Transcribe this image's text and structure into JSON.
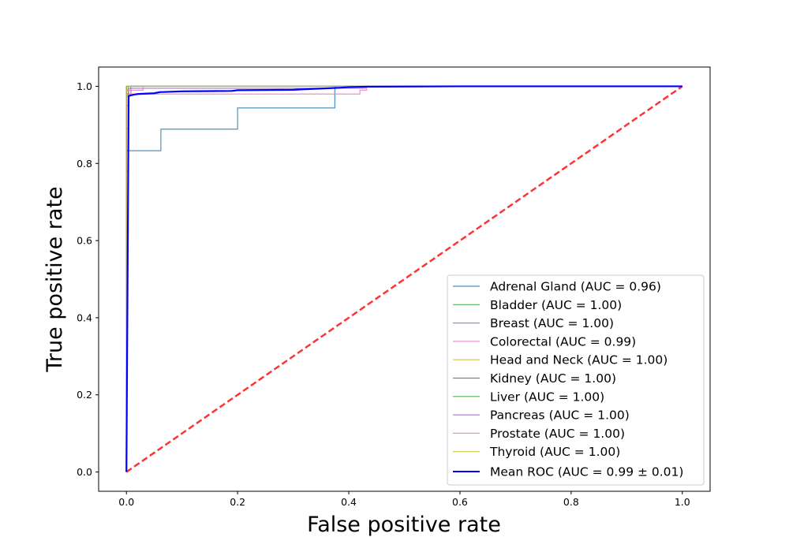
{
  "chart_data": {
    "type": "line",
    "title": "",
    "xlabel": "False positive rate",
    "ylabel": "True positive rate",
    "xlim": [
      -0.05,
      1.05
    ],
    "ylim": [
      -0.05,
      1.05
    ],
    "xticks": [
      {
        "value": 0.0,
        "label": "0.0"
      },
      {
        "value": 0.2,
        "label": "0.2"
      },
      {
        "value": 0.4,
        "label": "0.4"
      },
      {
        "value": 0.6,
        "label": "0.6"
      },
      {
        "value": 0.8,
        "label": "0.8"
      },
      {
        "value": 1.0,
        "label": "1.0"
      }
    ],
    "yticks": [
      {
        "value": 0.0,
        "label": "0.0"
      },
      {
        "value": 0.2,
        "label": "0.2"
      },
      {
        "value": 0.4,
        "label": "0.4"
      },
      {
        "value": 0.6,
        "label": "0.6"
      },
      {
        "value": 0.8,
        "label": "0.8"
      },
      {
        "value": 1.0,
        "label": "1.0"
      }
    ],
    "grid": false,
    "legend_position": "lower-right",
    "series": [
      {
        "name": "Adrenal Gland (AUC = 0.96)",
        "color": "#1f77b4",
        "x": [
          0,
          0,
          0.004,
          0.004,
          0.062,
          0.062,
          0.2,
          0.2,
          0.375,
          0.375,
          1.0
        ],
        "y": [
          0,
          0.833,
          0.833,
          0.833,
          0.833,
          0.889,
          0.889,
          0.944,
          0.944,
          1.0,
          1.0
        ]
      },
      {
        "name": "Bladder (AUC = 1.00)",
        "color": "#2ca02c",
        "x": [
          0,
          0,
          0.003,
          0.003,
          1.0
        ],
        "y": [
          0,
          0.95,
          0.95,
          1.0,
          1.0
        ]
      },
      {
        "name": "Breast (AUC = 1.00)",
        "color": "#9467bd",
        "x": [
          0,
          0,
          0.003,
          0.003,
          0.008,
          0.008,
          1.0
        ],
        "y": [
          0,
          0.78,
          0.78,
          0.98,
          0.98,
          1.0,
          1.0
        ]
      },
      {
        "name": "Colorectal (AUC = 0.99)",
        "color": "#e377c2",
        "x": [
          0,
          0,
          0.006,
          0.006,
          0.025,
          0.025,
          0.42,
          0.42,
          0.432,
          0.432,
          1.0
        ],
        "y": [
          0,
          0.975,
          0.975,
          0.98,
          0.98,
          0.98,
          0.98,
          0.99,
          0.99,
          1.0,
          1.0
        ]
      },
      {
        "name": "Head and Neck (AUC = 1.00)",
        "color": "#bcbd22",
        "x": [
          0,
          0,
          0.003,
          0.003,
          1.0
        ],
        "y": [
          0,
          0.89,
          0.89,
          1.0,
          1.0
        ]
      },
      {
        "name": "Kidney (AUC = 1.00)",
        "color": "#1f77b4",
        "x": [
          0,
          0,
          1.0
        ],
        "y": [
          0,
          1.0,
          1.0
        ]
      },
      {
        "name": "Liver (AUC = 1.00)",
        "color": "#2ca02c",
        "x": [
          0,
          0,
          1.0
        ],
        "y": [
          0,
          1.0,
          1.0
        ]
      },
      {
        "name": "Pancreas (AUC = 1.00)",
        "color": "#9467bd",
        "x": [
          0,
          0,
          0.004,
          0.004,
          0.43,
          0.43,
          1.0
        ],
        "y": [
          0,
          0.98,
          0.98,
          0.995,
          0.995,
          1.0,
          1.0
        ]
      },
      {
        "name": "Prostate (AUC = 1.00)",
        "color": "#e377c2",
        "x": [
          0,
          0,
          0.03,
          0.03,
          1.0
        ],
        "y": [
          0,
          0.99,
          0.99,
          1.0,
          1.0
        ]
      },
      {
        "name": "Thyroid (AUC = 1.00)",
        "color": "#bcbd22",
        "x": [
          0,
          0,
          1.0
        ],
        "y": [
          0,
          1.0,
          1.0
        ]
      },
      {
        "name": "Mean ROC (AUC = 0.99 ± 0.01)",
        "color": "#0000ff",
        "x": [
          0,
          0.004,
          0.012,
          0.02,
          0.05,
          0.06,
          0.1,
          0.19,
          0.2,
          0.3,
          0.38,
          0.4,
          0.43,
          0.6,
          0.8,
          1.0
        ],
        "y": [
          0,
          0.975,
          0.978,
          0.98,
          0.982,
          0.985,
          0.987,
          0.988,
          0.99,
          0.991,
          0.996,
          0.998,
          0.999,
          1.0,
          1.0,
          1.0
        ]
      }
    ],
    "reference_line": {
      "x": [
        0,
        1
      ],
      "y": [
        0,
        1
      ],
      "color": "#ff0000",
      "style": "dashed"
    }
  }
}
